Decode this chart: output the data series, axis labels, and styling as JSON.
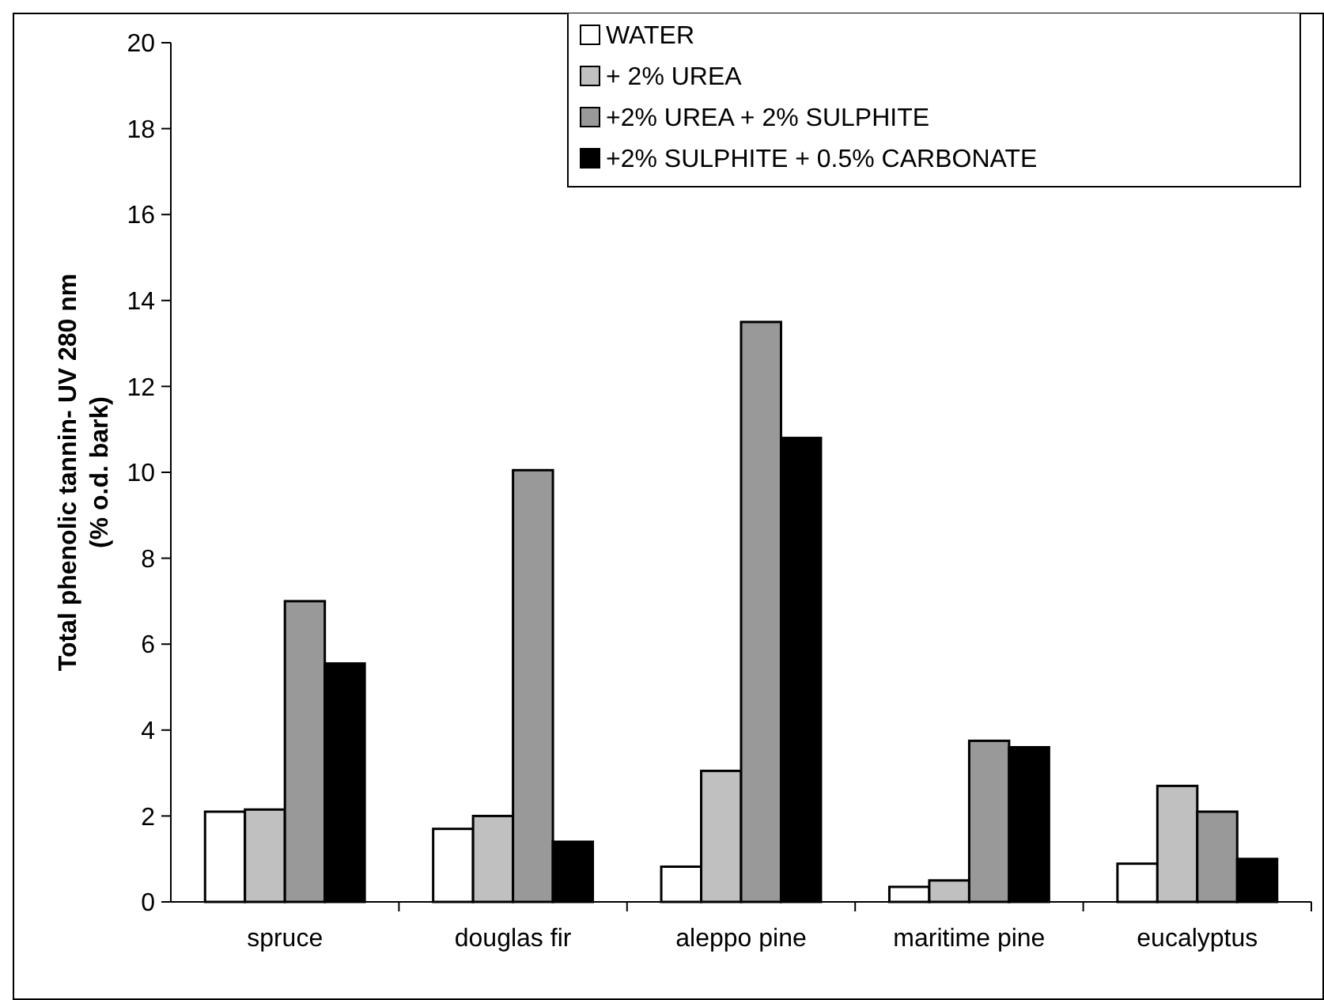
{
  "chart_data": {
    "type": "bar",
    "ylabel": "Total phenolic tannin- UV 280 nm\n(% o.d. bark)",
    "categories": [
      "spruce",
      "douglas fir",
      "aleppo pine",
      "maritime pine",
      "eucalyptus"
    ],
    "series": [
      {
        "name": "WATER",
        "color": "#ffffff",
        "values": [
          2.1,
          1.7,
          0.82,
          0.35,
          0.89
        ]
      },
      {
        "name": "+ 2% UREA",
        "color": "#c0c0c0",
        "values": [
          2.15,
          2.0,
          3.05,
          0.5,
          2.7
        ]
      },
      {
        "name": "+2% UREA + 2% SULPHITE",
        "color": "#999999",
        "values": [
          7.0,
          10.05,
          13.5,
          3.75,
          2.1
        ]
      },
      {
        "name": "+2% SULPHITE + 0.5% CARBONATE",
        "color": "#000000",
        "values": [
          5.55,
          1.4,
          10.8,
          3.6,
          1.0
        ]
      }
    ],
    "ylim": [
      0,
      20
    ],
    "yticks": [
      0,
      2,
      4,
      6,
      8,
      10,
      12,
      14,
      16,
      18,
      20
    ],
    "grid": false,
    "legend": "top right"
  }
}
